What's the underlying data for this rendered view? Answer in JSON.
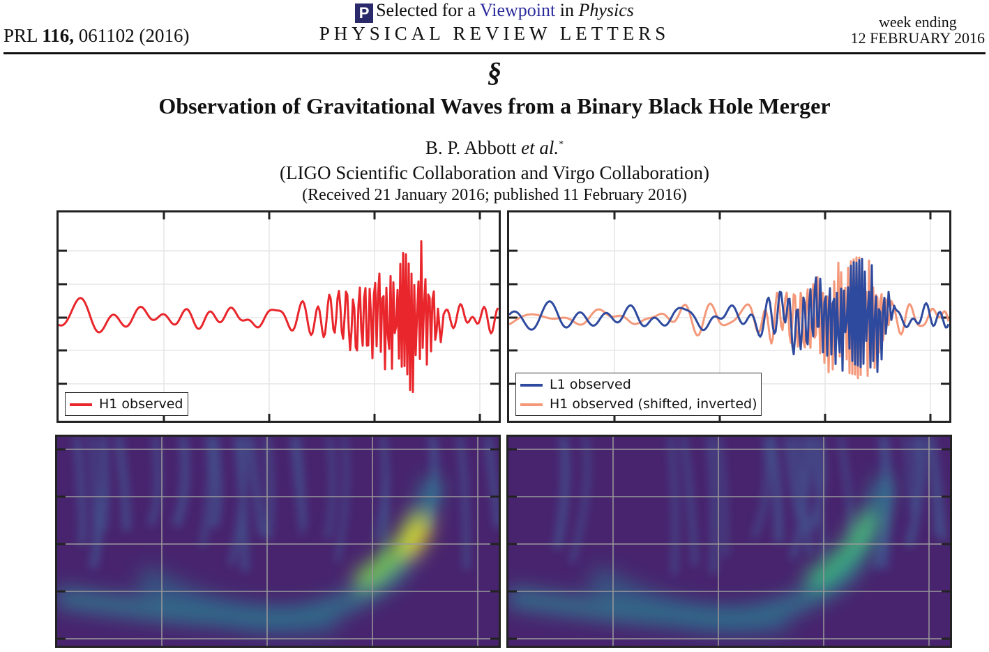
{
  "header": {
    "citation_prefix": "PRL",
    "volume": "116,",
    "citation_suffix": "061102 (2016)",
    "viewpoint_logo": "P",
    "viewpoint_pre": "Selected for a",
    "viewpoint_link": "Viewpoint",
    "viewpoint_mid": "in",
    "viewpoint_journal": "Physics",
    "journal": "PHYSICAL REVIEW LETTERS",
    "week_label": "week ending",
    "week_date": "12 FEBRUARY 2016",
    "section_glyph": "§"
  },
  "article": {
    "title": "Observation of Gravitational Waves from a Binary Black Hole Merger",
    "author": "B. P. Abbott",
    "author_etal": "et al.",
    "author_mark": "*",
    "collaboration": "(LIGO Scientific Collaboration and Virgo Collaboration)",
    "received": "(Received 21 January 2016; published 11 February 2016)"
  },
  "figure": {
    "left_legend": [
      {
        "label": "H1 observed",
        "color": "#e8262b"
      }
    ],
    "right_legend": [
      {
        "label": "L1 observed",
        "color": "#2e4a9e"
      },
      {
        "label": "H1 observed (shifted, inverted)",
        "color": "#f4987a"
      }
    ]
  }
}
